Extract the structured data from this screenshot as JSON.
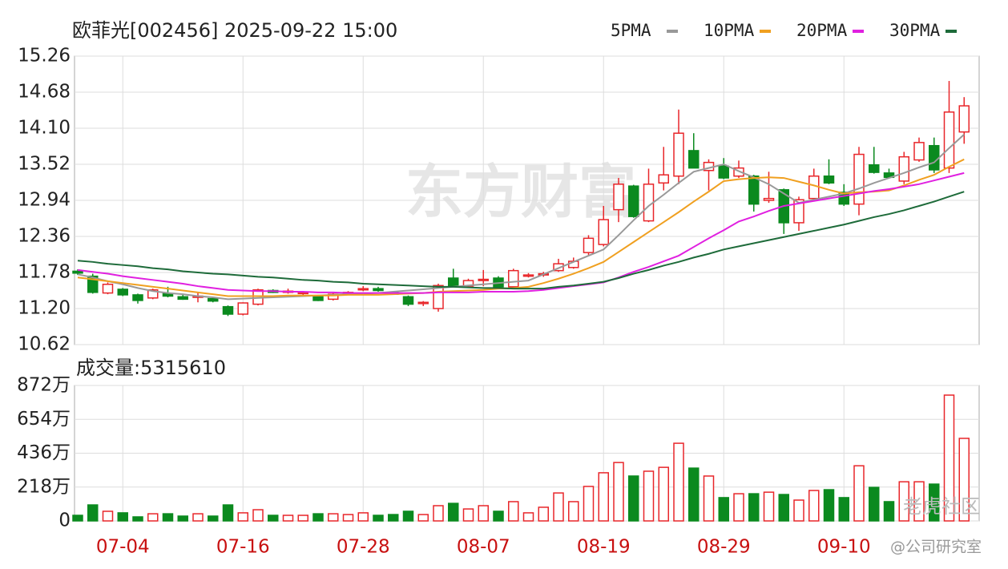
{
  "header": {
    "title": "欧菲光[002456] 2025-09-22 15:00"
  },
  "chart_data": [
    {
      "type": "candlestick",
      "categories": [
        null,
        null,
        null,
        "07-04",
        null,
        null,
        null,
        null,
        null,
        null,
        null,
        "07-16",
        null,
        null,
        null,
        null,
        null,
        null,
        null,
        "07-28",
        null,
        null,
        null,
        null,
        null,
        null,
        null,
        "08-07",
        null,
        null,
        null,
        null,
        null,
        null,
        null,
        "08-19",
        null,
        null,
        null,
        null,
        null,
        null,
        null,
        "08-29",
        null,
        null,
        null,
        null,
        null,
        null,
        null,
        "09-10",
        null,
        null,
        null,
        null,
        null,
        null,
        null,
        null
      ],
      "open": [
        11.8,
        11.72,
        11.45,
        11.51,
        11.42,
        11.37,
        11.44,
        11.39,
        11.38,
        11.36,
        11.23,
        11.11,
        11.27,
        11.49,
        11.47,
        11.44,
        11.39,
        11.35,
        11.44,
        11.5,
        11.52,
        11.46,
        11.39,
        11.28,
        11.2,
        11.69,
        11.56,
        11.65,
        11.69,
        11.55,
        11.72,
        11.74,
        11.81,
        11.86,
        12.1,
        12.23,
        12.79,
        13.17,
        12.61,
        13.22,
        13.33,
        13.74,
        13.42,
        13.49,
        13.33,
        13.33,
        12.94,
        13.11,
        12.58,
        12.97,
        13.33,
        13.07,
        12.88,
        13.51,
        13.38,
        13.25,
        13.59,
        13.82,
        13.46,
        14.04
      ],
      "high": [
        11.83,
        11.76,
        11.62,
        11.53,
        11.44,
        11.52,
        11.55,
        11.42,
        11.46,
        11.38,
        11.25,
        11.3,
        11.52,
        11.51,
        11.52,
        11.48,
        11.42,
        11.45,
        11.48,
        11.56,
        11.55,
        11.48,
        11.41,
        11.32,
        11.6,
        11.84,
        11.68,
        11.82,
        11.72,
        11.84,
        11.77,
        11.79,
        12.0,
        12.02,
        12.38,
        12.85,
        13.3,
        13.19,
        13.45,
        13.8,
        14.4,
        14.02,
        13.6,
        13.62,
        13.58,
        13.35,
        13.4,
        13.13,
        13.0,
        13.45,
        13.6,
        13.2,
        13.8,
        13.8,
        13.45,
        13.72,
        13.95,
        13.95,
        14.86,
        14.6
      ],
      "low": [
        11.74,
        11.44,
        11.43,
        11.4,
        11.28,
        11.35,
        11.38,
        11.34,
        11.3,
        11.3,
        11.08,
        11.09,
        11.25,
        11.45,
        11.44,
        11.4,
        11.32,
        11.33,
        11.42,
        11.48,
        11.47,
        11.42,
        11.24,
        11.24,
        11.15,
        11.55,
        11.54,
        11.56,
        11.53,
        11.53,
        11.7,
        11.71,
        11.79,
        11.84,
        12.05,
        12.2,
        12.59,
        12.66,
        12.59,
        13.1,
        13.2,
        13.46,
        13.1,
        13.28,
        13.3,
        12.76,
        12.9,
        12.4,
        12.45,
        12.95,
        13.2,
        12.85,
        12.7,
        13.37,
        13.29,
        13.2,
        13.56,
        13.38,
        13.38,
        13.85
      ],
      "close": [
        11.77,
        11.46,
        11.59,
        11.42,
        11.33,
        11.5,
        11.4,
        11.35,
        11.4,
        11.32,
        11.11,
        11.29,
        11.5,
        11.46,
        11.48,
        11.46,
        11.33,
        11.43,
        11.46,
        11.52,
        11.49,
        11.43,
        11.27,
        11.3,
        11.57,
        11.57,
        11.65,
        11.67,
        11.55,
        11.81,
        11.74,
        11.76,
        11.92,
        11.96,
        12.33,
        12.63,
        13.2,
        12.68,
        13.2,
        13.35,
        14.02,
        13.46,
        13.55,
        13.3,
        13.46,
        12.88,
        12.97,
        12.58,
        12.95,
        13.33,
        13.22,
        12.88,
        13.68,
        13.39,
        13.31,
        13.64,
        13.87,
        13.43,
        14.36,
        14.46
      ],
      "up_color": "#e8262a",
      "down_color": "#0b8a1f",
      "ylim": [
        10.62,
        15.26
      ],
      "yticks": [
        10.62,
        {
          "value": 11.2,
          "label": "11.20"
        },
        11.78,
        12.36,
        12.94,
        13.52,
        {
          "value": 14.1,
          "label": "14.10"
        },
        14.68,
        15.26
      ],
      "grid": true,
      "legend": "top-right",
      "series": [
        {
          "name": "5PMA",
          "color": "#999999",
          "values": [
            11.75,
            11.7,
            11.64,
            11.59,
            11.53,
            11.48,
            11.45,
            11.43,
            11.4,
            11.38,
            11.35,
            11.36,
            11.37,
            11.38,
            11.39,
            11.4,
            11.41,
            11.42,
            11.43,
            11.44,
            11.45,
            11.47,
            11.49,
            11.51,
            11.53,
            11.55,
            11.57,
            11.59,
            11.61,
            11.63,
            11.65,
            11.75,
            11.85,
            11.95,
            12.05,
            12.15,
            12.38,
            12.62,
            12.85,
            13.03,
            13.22,
            13.4,
            13.46,
            13.52,
            13.41,
            13.31,
            13.2,
            13.05,
            12.9,
            12.95,
            13.0,
            13.05,
            13.13,
            13.22,
            13.3,
            13.38,
            13.47,
            13.55,
            13.78,
            14.0
          ]
        },
        {
          "name": "10PMA",
          "color": "#f0a020",
          "values": [
            11.7,
            11.67,
            11.64,
            11.61,
            11.58,
            11.55,
            11.52,
            11.49,
            11.46,
            11.43,
            11.4,
            11.4,
            11.4,
            11.4,
            11.41,
            11.41,
            11.41,
            11.41,
            11.42,
            11.42,
            11.42,
            11.43,
            11.44,
            11.45,
            11.47,
            11.48,
            11.49,
            11.5,
            11.52,
            11.53,
            11.55,
            11.61,
            11.68,
            11.76,
            11.85,
            11.95,
            12.11,
            12.27,
            12.43,
            12.59,
            12.75,
            12.92,
            13.08,
            13.25,
            13.28,
            13.3,
            13.31,
            13.3,
            13.24,
            13.18,
            13.11,
            13.05,
            13.07,
            13.08,
            13.1,
            13.18,
            13.27,
            13.35,
            13.48,
            13.6
          ]
        },
        {
          "name": "20PMA",
          "color": "#e020e0",
          "values": [
            11.82,
            11.79,
            11.76,
            11.72,
            11.69,
            11.66,
            11.63,
            11.6,
            11.56,
            11.53,
            11.5,
            11.49,
            11.48,
            11.48,
            11.47,
            11.47,
            11.46,
            11.46,
            11.45,
            11.45,
            11.45,
            11.45,
            11.45,
            11.45,
            11.46,
            11.46,
            11.46,
            11.47,
            11.47,
            11.47,
            11.48,
            11.5,
            11.53,
            11.56,
            11.59,
            11.62,
            11.7,
            11.79,
            11.87,
            11.96,
            12.05,
            12.19,
            12.33,
            12.46,
            12.6,
            12.68,
            12.77,
            12.85,
            12.89,
            12.93,
            12.97,
            13.01,
            13.05,
            13.09,
            13.12,
            13.16,
            13.2,
            13.26,
            13.32,
            13.38
          ]
        },
        {
          "name": "30PMA",
          "color": "#1e6b3a",
          "values": [
            11.97,
            11.95,
            11.92,
            11.9,
            11.88,
            11.85,
            11.83,
            11.8,
            11.78,
            11.76,
            11.75,
            11.73,
            11.71,
            11.7,
            11.68,
            11.66,
            11.65,
            11.63,
            11.62,
            11.6,
            11.59,
            11.58,
            11.57,
            11.56,
            11.55,
            11.55,
            11.54,
            11.53,
            11.53,
            11.52,
            11.52,
            11.52,
            11.55,
            11.57,
            11.6,
            11.63,
            11.69,
            11.76,
            11.82,
            11.89,
            11.95,
            12.02,
            12.08,
            12.15,
            12.2,
            12.25,
            12.3,
            12.35,
            12.4,
            12.45,
            12.5,
            12.55,
            12.61,
            12.67,
            12.72,
            12.78,
            12.85,
            12.92,
            13.0,
            13.08
          ]
        }
      ]
    },
    {
      "type": "bar",
      "title": "成交量:5315610",
      "values": [
        36,
        103,
        62,
        52,
        26,
        46,
        46,
        31,
        46,
        31,
        103,
        52,
        72,
        36,
        36,
        36,
        46,
        46,
        41,
        52,
        36,
        41,
        62,
        41,
        98,
        113,
        77,
        98,
        62,
        124,
        52,
        88,
        180,
        124,
        222,
        310,
        376,
        289,
        320,
        345,
        500,
        340,
        289,
        150,
        175,
        175,
        185,
        170,
        134,
        196,
        201,
        150,
        355,
        216,
        124,
        252,
        252,
        237,
        810,
        531.561
      ],
      "ylim": [
        0,
        872
      ],
      "yticks": [
        0,
        {
          "value": 218,
          "label": "218万"
        },
        {
          "value": 436,
          "label": "436万"
        },
        {
          "value": 654,
          "label": "654万"
        },
        {
          "value": 872,
          "label": "872万"
        }
      ],
      "grid": true
    }
  ],
  "watermarks": [
    "东方财富",
    "老虎社区",
    "@公司研究室"
  ]
}
